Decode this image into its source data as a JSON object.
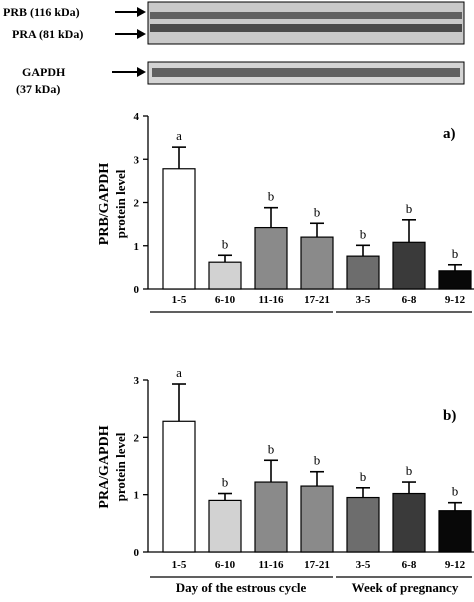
{
  "blot": {
    "upper_bands": [
      "PRB (116 kDa)",
      "PRA (81 kDa)"
    ],
    "lower_band_lines": [
      "GAPDH",
      "(37 kDa)"
    ]
  },
  "colors": {
    "bar_fills": [
      "#ffffff",
      "#d2d2d2",
      "#8a8a8a",
      "#8a8a8a",
      "#6d6d6d",
      "#3a3a3a",
      "#080808"
    ]
  },
  "chart_data": [
    {
      "type": "bar",
      "panel_label": "a)",
      "ylabel_lines": [
        "PRB/GAPDH",
        "protein level"
      ],
      "ylim": [
        0,
        4
      ],
      "yticks": [
        "0",
        "1",
        "2",
        "3",
        "4"
      ],
      "categories": [
        "1-5",
        "6-10",
        "11-16",
        "17-21",
        "3-5",
        "6-8",
        "9-12"
      ],
      "values": [
        2.78,
        0.62,
        1.42,
        1.2,
        0.76,
        1.08,
        0.42
      ],
      "errors": [
        0.5,
        0.16,
        0.46,
        0.32,
        0.25,
        0.52,
        0.14
      ],
      "significance": [
        "a",
        "b",
        "b",
        "b",
        "b",
        "b",
        "b"
      ]
    },
    {
      "type": "bar",
      "panel_label": "b)",
      "ylabel_lines": [
        "PRA/GAPDH",
        "protein level"
      ],
      "ylim": [
        0,
        3
      ],
      "yticks": [
        "0",
        "1",
        "2",
        "3"
      ],
      "categories": [
        "1-5",
        "6-10",
        "11-16",
        "17-21",
        "3-5",
        "6-8",
        "9-12"
      ],
      "values": [
        2.28,
        0.9,
        1.22,
        1.15,
        0.95,
        1.02,
        0.72
      ],
      "errors": [
        0.65,
        0.12,
        0.38,
        0.25,
        0.17,
        0.2,
        0.14
      ],
      "significance": [
        "a",
        "b",
        "b",
        "b",
        "b",
        "b",
        "b"
      ]
    }
  ],
  "group_labels": [
    "Day of the estrous cycle",
    "Week of pregnancy"
  ]
}
